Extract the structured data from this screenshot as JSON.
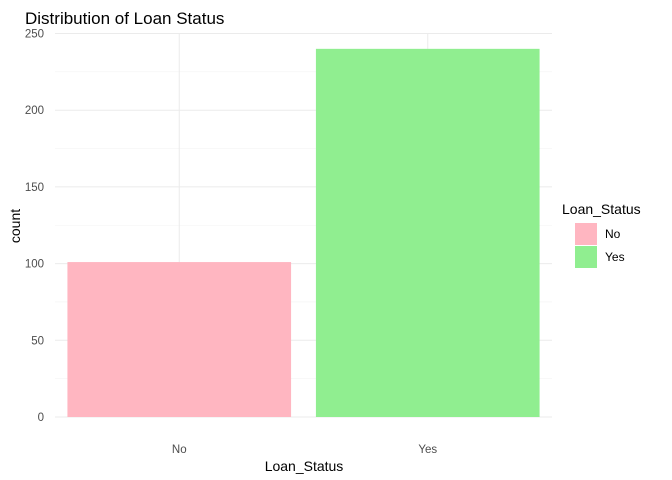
{
  "chart_data": {
    "type": "bar",
    "title": "Distribution of Loan Status",
    "xlabel": "Loan_Status",
    "ylabel": "count",
    "categories": [
      "No",
      "Yes"
    ],
    "values": [
      101,
      240
    ],
    "colors": [
      "#ffb6c1",
      "#90ee90"
    ],
    "ylim": [
      0,
      250
    ],
    "yticks": [
      0,
      50,
      100,
      150,
      200,
      250
    ],
    "grid": true,
    "legend": {
      "title": "Loan_Status",
      "position": "right",
      "entries": [
        {
          "label": "No",
          "color": "#ffb6c1"
        },
        {
          "label": "Yes",
          "color": "#90ee90"
        }
      ]
    }
  }
}
